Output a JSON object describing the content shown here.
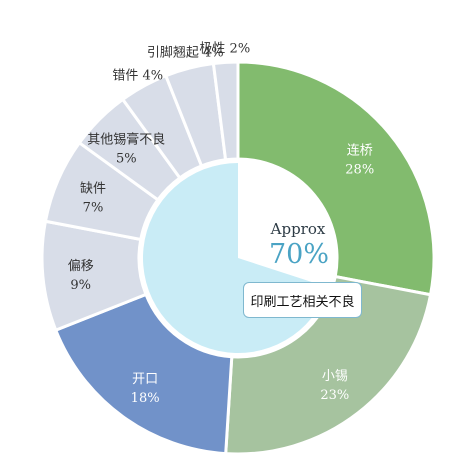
{
  "chart_data": {
    "type": "pie",
    "style": "donut",
    "slices": [
      {
        "label": "连桥",
        "value": 28,
        "value_label": "28%",
        "color": "#82bb6e"
      },
      {
        "label": "小锡",
        "value": 23,
        "value_label": "23%",
        "color": "#a6c39f"
      },
      {
        "label": "开口",
        "value": 18,
        "value_label": "18%",
        "color": "#7192c9"
      },
      {
        "label": "偏移",
        "value": 9,
        "value_label": "9%",
        "color": "#d8dde8"
      },
      {
        "label": "缺件",
        "value": 7,
        "value_label": "7%",
        "color": "#d8dde8"
      },
      {
        "label": "其他锡膏不良",
        "value": 5,
        "value_label": "5%",
        "color": "#d8dde8"
      },
      {
        "label": "错件",
        "value": 4,
        "value_label": "4%",
        "color": "#d8dde8"
      },
      {
        "label": "引脚翘起",
        "value": 4,
        "value_label": "4%",
        "color": "#d8dde8"
      },
      {
        "label": "极性",
        "value": 2,
        "value_label": "2%",
        "color": "#d8dde8"
      }
    ],
    "center": {
      "approx_label": "Approx",
      "value": 70,
      "value_label": "70%",
      "color": "#c9ecf6",
      "callout": "印刷工艺相关不良"
    }
  }
}
